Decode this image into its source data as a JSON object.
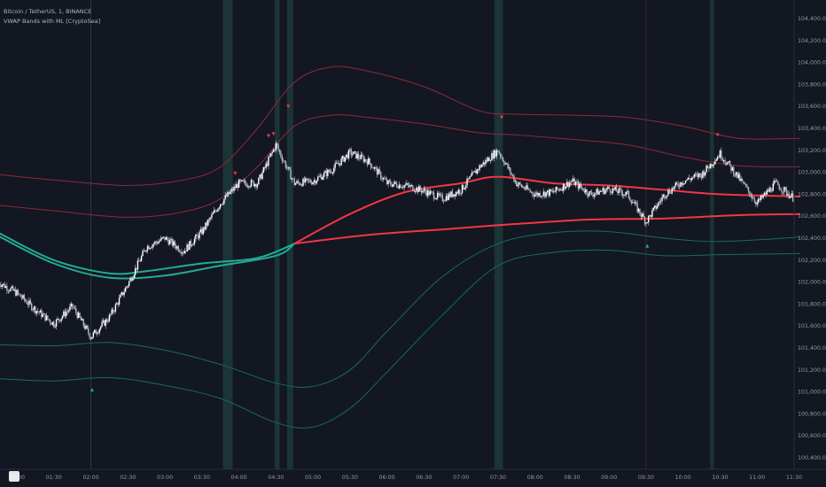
{
  "header": {
    "symbol_line": "Bitcoin / TetherUS, 1, BINANCE",
    "indicator_line": "VWAP Bands with ML [CryptoSea]"
  },
  "colors": {
    "background": "#131722",
    "candle": "#d1d4dc",
    "vwap_red": "#f23645",
    "band_red": "#8e2a36",
    "vwap_teal": "#22ab94",
    "band_teal": "#176b5c",
    "highlight": "#1d3a3a",
    "axis_text": "#9598a1"
  },
  "chart_data": {
    "type": "line",
    "y_ticks": [
      "104,400.00",
      "104,200.00",
      "104,000.00",
      "103,800.00",
      "103,600.00",
      "103,400.00",
      "103,200.00",
      "103,000.00",
      "102,800.00",
      "102,600.00",
      "102,400.00",
      "102,200.00",
      "102,000.00",
      "101,800.00",
      "101,600.00",
      "101,400.00",
      "101,200.00",
      "101,000.00",
      "100,800.00",
      "100,600.00",
      "100,400.00"
    ],
    "x_ticks": [
      "01:00",
      "01:30",
      "02:00",
      "02:30",
      "03:00",
      "03:30",
      "04:00",
      "04:30",
      "05:00",
      "05:30",
      "06:00",
      "06:30",
      "07:00",
      "07:30",
      "08:00",
      "08:30",
      "09:00",
      "09:30",
      "10:00",
      "10:30",
      "11:00",
      "11:30"
    ],
    "ylim": [
      100400,
      104400
    ],
    "price_path": [
      {
        "t": "00:45",
        "price": 102000
      },
      {
        "t": "01:00",
        "price": 101900
      },
      {
        "t": "01:15",
        "price": 101750
      },
      {
        "t": "01:30",
        "price": 101620
      },
      {
        "t": "01:45",
        "price": 101780
      },
      {
        "t": "02:00",
        "price": 101500
      },
      {
        "t": "02:15",
        "price": 101680
      },
      {
        "t": "02:30",
        "price": 101980
      },
      {
        "t": "02:45",
        "price": 102320
      },
      {
        "t": "03:00",
        "price": 102400
      },
      {
        "t": "03:15",
        "price": 102280
      },
      {
        "t": "03:30",
        "price": 102460
      },
      {
        "t": "03:45",
        "price": 102720
      },
      {
        "t": "04:00",
        "price": 102900
      },
      {
        "t": "04:15",
        "price": 102900
      },
      {
        "t": "04:30",
        "price": 103250
      },
      {
        "t": "04:45",
        "price": 102900
      },
      {
        "t": "05:00",
        "price": 102920
      },
      {
        "t": "05:15",
        "price": 103020
      },
      {
        "t": "05:30",
        "price": 103180
      },
      {
        "t": "05:45",
        "price": 103100
      },
      {
        "t": "06:00",
        "price": 102900
      },
      {
        "t": "06:15",
        "price": 102880
      },
      {
        "t": "06:30",
        "price": 102830
      },
      {
        "t": "06:45",
        "price": 102760
      },
      {
        "t": "07:00",
        "price": 102840
      },
      {
        "t": "07:15",
        "price": 103050
      },
      {
        "t": "07:30",
        "price": 103200
      },
      {
        "t": "07:45",
        "price": 102900
      },
      {
        "t": "08:00",
        "price": 102800
      },
      {
        "t": "08:15",
        "price": 102820
      },
      {
        "t": "08:30",
        "price": 102920
      },
      {
        "t": "08:45",
        "price": 102800
      },
      {
        "t": "09:00",
        "price": 102850
      },
      {
        "t": "09:15",
        "price": 102800
      },
      {
        "t": "09:30",
        "price": 102550
      },
      {
        "t": "09:45",
        "price": 102800
      },
      {
        "t": "10:00",
        "price": 102920
      },
      {
        "t": "10:15",
        "price": 102980
      },
      {
        "t": "10:30",
        "price": 103170
      },
      {
        "t": "10:45",
        "price": 102950
      },
      {
        "t": "11:00",
        "price": 102720
      },
      {
        "t": "11:15",
        "price": 102900
      },
      {
        "t": "11:30",
        "price": 102760
      }
    ],
    "series": [
      {
        "style": "vwap",
        "points": [
          {
            "t": "00:45",
            "price": 102450
          },
          {
            "t": "01:30",
            "price": 102200
          },
          {
            "t": "02:15",
            "price": 102080
          },
          {
            "t": "02:45",
            "price": 102100
          },
          {
            "t": "03:30",
            "price": 102170
          },
          {
            "t": "04:15",
            "price": 102220
          },
          {
            "t": "04:45",
            "price": 102350
          },
          {
            "t": "05:30",
            "price": 102620
          },
          {
            "t": "06:15",
            "price": 102820
          },
          {
            "t": "07:00",
            "price": 102900
          },
          {
            "t": "07:30",
            "price": 102960
          },
          {
            "t": "08:15",
            "price": 102900
          },
          {
            "t": "09:00",
            "price": 102880
          },
          {
            "t": "09:45",
            "price": 102840
          },
          {
            "t": "10:30",
            "price": 102800
          },
          {
            "t": "11:35",
            "price": 102780
          }
        ]
      },
      {
        "style": "vwap",
        "points": [
          {
            "t": "00:45",
            "price": 102420
          },
          {
            "t": "01:30",
            "price": 102170
          },
          {
            "t": "02:15",
            "price": 102040
          },
          {
            "t": "03:00",
            "price": 102060
          },
          {
            "t": "03:45",
            "price": 102150
          },
          {
            "t": "04:30",
            "price": 102240
          },
          {
            "t": "04:45",
            "price": 102350
          },
          {
            "t": "05:45",
            "price": 102430
          },
          {
            "t": "06:45",
            "price": 102480
          },
          {
            "t": "07:45",
            "price": 102530
          },
          {
            "t": "08:45",
            "price": 102570
          },
          {
            "t": "09:45",
            "price": 102580
          },
          {
            "t": "10:45",
            "price": 102610
          },
          {
            "t": "11:35",
            "price": 102620
          }
        ]
      },
      {
        "style": "band",
        "points": [
          {
            "t": "00:45",
            "price": 102980
          },
          {
            "t": "01:30",
            "price": 102930
          },
          {
            "t": "02:30",
            "price": 102880
          },
          {
            "t": "03:15",
            "price": 102930
          },
          {
            "t": "03:45",
            "price": 103050
          },
          {
            "t": "04:15",
            "price": 103400
          },
          {
            "t": "04:45",
            "price": 103820
          },
          {
            "t": "05:15",
            "price": 103960
          },
          {
            "t": "05:45",
            "price": 103920
          },
          {
            "t": "06:30",
            "price": 103780
          },
          {
            "t": "07:15",
            "price": 103560
          },
          {
            "t": "07:45",
            "price": 103530
          },
          {
            "t": "08:30",
            "price": 103520
          },
          {
            "t": "09:15",
            "price": 103500
          },
          {
            "t": "10:00",
            "price": 103420
          },
          {
            "t": "10:45",
            "price": 103310
          },
          {
            "t": "11:35",
            "price": 103310
          }
        ]
      },
      {
        "style": "band",
        "points": [
          {
            "t": "00:45",
            "price": 102700
          },
          {
            "t": "01:30",
            "price": 102650
          },
          {
            "t": "02:30",
            "price": 102590
          },
          {
            "t": "03:15",
            "price": 102640
          },
          {
            "t": "03:45",
            "price": 102760
          },
          {
            "t": "04:15",
            "price": 103050
          },
          {
            "t": "04:45",
            "price": 103420
          },
          {
            "t": "05:15",
            "price": 103520
          },
          {
            "t": "05:45",
            "price": 103500
          },
          {
            "t": "06:30",
            "price": 103440
          },
          {
            "t": "07:15",
            "price": 103360
          },
          {
            "t": "07:45",
            "price": 103340
          },
          {
            "t": "08:30",
            "price": 103300
          },
          {
            "t": "09:15",
            "price": 103250
          },
          {
            "t": "10:00",
            "price": 103140
          },
          {
            "t": "10:45",
            "price": 103060
          },
          {
            "t": "11:35",
            "price": 103050
          }
        ]
      },
      {
        "style": "band",
        "points": [
          {
            "t": "00:45",
            "price": 101430
          },
          {
            "t": "01:30",
            "price": 101420
          },
          {
            "t": "02:15",
            "price": 101450
          },
          {
            "t": "03:00",
            "price": 101380
          },
          {
            "t": "03:45",
            "price": 101250
          },
          {
            "t": "04:30",
            "price": 101080
          },
          {
            "t": "05:00",
            "price": 101050
          },
          {
            "t": "05:30",
            "price": 101200
          },
          {
            "t": "06:00",
            "price": 101550
          },
          {
            "t": "06:45",
            "price": 102050
          },
          {
            "t": "07:30",
            "price": 102350
          },
          {
            "t": "08:15",
            "price": 102450
          },
          {
            "t": "09:00",
            "price": 102460
          },
          {
            "t": "09:45",
            "price": 102400
          },
          {
            "t": "10:30",
            "price": 102370
          },
          {
            "t": "11:35",
            "price": 102410
          }
        ]
      },
      {
        "style": "band",
        "points": [
          {
            "t": "00:45",
            "price": 101120
          },
          {
            "t": "01:30",
            "price": 101100
          },
          {
            "t": "02:15",
            "price": 101130
          },
          {
            "t": "03:00",
            "price": 101060
          },
          {
            "t": "03:45",
            "price": 100940
          },
          {
            "t": "04:30",
            "price": 100720
          },
          {
            "t": "05:00",
            "price": 100680
          },
          {
            "t": "05:30",
            "price": 100850
          },
          {
            "t": "06:00",
            "price": 101180
          },
          {
            "t": "06:45",
            "price": 101700
          },
          {
            "t": "07:30",
            "price": 102150
          },
          {
            "t": "08:15",
            "price": 102270
          },
          {
            "t": "09:00",
            "price": 102290
          },
          {
            "t": "09:45",
            "price": 102240
          },
          {
            "t": "10:30",
            "price": 102250
          },
          {
            "t": "11:35",
            "price": 102260
          }
        ]
      }
    ],
    "highlight_zones": [
      {
        "start": "03:47",
        "end": "03:55"
      },
      {
        "start": "04:29",
        "end": "04:33"
      },
      {
        "start": "04:39",
        "end": "04:44"
      },
      {
        "start": "07:27",
        "end": "07:34"
      },
      {
        "start": "10:22",
        "end": "10:25"
      }
    ],
    "signals": [
      {
        "t": "03:57",
        "price": 102990,
        "kind": "sell"
      },
      {
        "t": "04:24",
        "price": 103330,
        "kind": "sell"
      },
      {
        "t": "04:28",
        "price": 103350,
        "kind": "sell"
      },
      {
        "t": "04:40",
        "price": 103600,
        "kind": "sell"
      },
      {
        "t": "07:33",
        "price": 103500,
        "kind": "sell"
      },
      {
        "t": "10:28",
        "price": 103340,
        "kind": "sell"
      },
      {
        "t": "02:01",
        "price": 101020,
        "kind": "buy"
      },
      {
        "t": "09:31",
        "price": 102330,
        "kind": "buy"
      }
    ]
  }
}
